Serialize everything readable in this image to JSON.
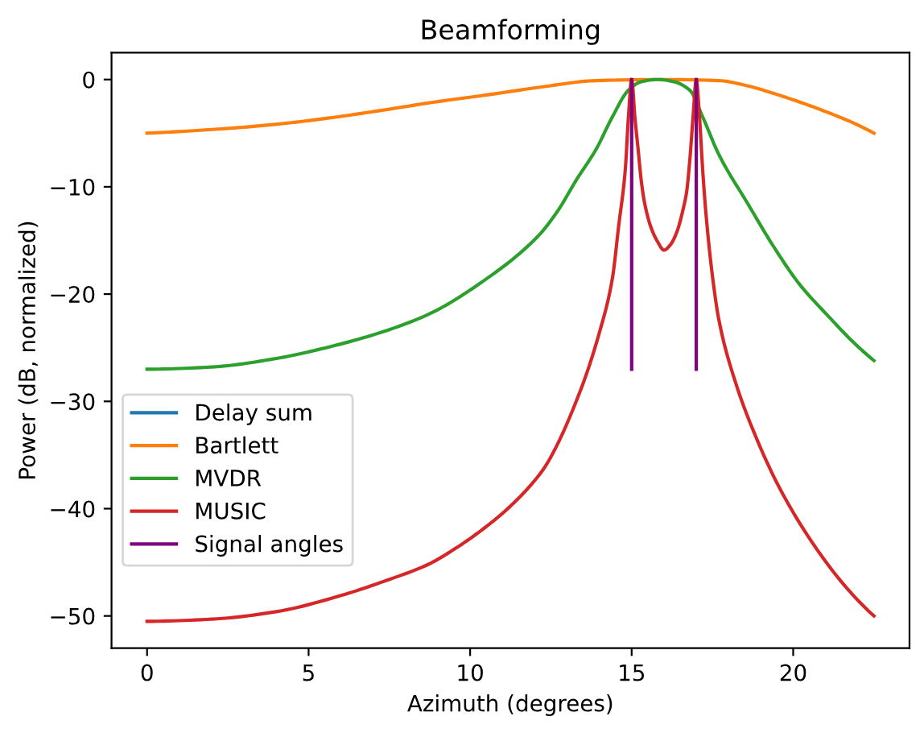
{
  "chart_data": {
    "type": "line",
    "title": "Beamforming",
    "xlabel": "Azimuth (degrees)",
    "ylabel": "Power (dB, normalized)",
    "xlim": [
      -1.1,
      23.6
    ],
    "ylim": [
      -53.0,
      2.5
    ],
    "xticks": [
      0,
      5,
      10,
      15,
      20
    ],
    "yticks": [
      0,
      {
        "value": -10,
        "label": "−10"
      },
      {
        "value": -20,
        "label": "−20"
      },
      {
        "value": -30,
        "label": "−30"
      },
      {
        "value": -40,
        "label": "−40"
      },
      {
        "value": -50,
        "label": "−50"
      }
    ],
    "grid": false,
    "legend": "bottom left",
    "series": [
      {
        "name": "Delay sum",
        "color": "#1f77b4",
        "values": [
          null
        ]
      },
      {
        "name": "Bartlett",
        "color": "#ff7f0e",
        "x": [
          0,
          2.3,
          3.9,
          5.6,
          7.2,
          8.9,
          10.6,
          12.2,
          13.9,
          16.0,
          17.7,
          18.6,
          19.4,
          20.2,
          21.1,
          21.9,
          22.5
        ],
        "values": [
          -5.0,
          -4.6,
          -4.2,
          -3.6,
          -2.9,
          -2.1,
          -1.4,
          -0.7,
          -0.1,
          0,
          -0.1,
          -0.6,
          -1.3,
          -2.1,
          -3.1,
          -4.1,
          -5.0
        ]
      },
      {
        "name": "MVDR",
        "color": "#2ca02c",
        "x": [
          0,
          2,
          4,
          5.4,
          7.1,
          8.7,
          10.4,
          12.1,
          12.7,
          13.3,
          13.9,
          14.4,
          14.9,
          15.3,
          15.8,
          16.3,
          16.8,
          17.2,
          17.7,
          18.6,
          19.4,
          20.2,
          21.1,
          21.9,
          22.5
        ],
        "values": [
          -27.0,
          -26.8,
          -26.0,
          -25.1,
          -23.7,
          -21.9,
          -18.8,
          -14.6,
          -12.3,
          -9.3,
          -6.5,
          -3.5,
          -1.0,
          -0.2,
          0,
          -0.2,
          -1.0,
          -3.5,
          -7.0,
          -11.6,
          -15.6,
          -19.1,
          -22.1,
          -24.6,
          -26.2
        ]
      },
      {
        "name": "MUSIC",
        "color": "#d62728",
        "x": [
          0,
          2,
          4,
          6,
          7.4,
          8.7,
          9.6,
          10.4,
          11.2,
          12.1,
          12.4,
          13.4,
          14.0,
          14.4,
          14.6,
          14.8,
          14.9,
          15.0,
          15.1,
          15.2,
          15.3,
          15.4,
          15.6,
          15.8,
          16.0,
          16.2,
          16.4,
          16.6,
          16.7,
          16.8,
          16.9,
          17.0,
          17.1,
          17.2,
          17.3,
          17.5,
          17.7,
          18.2,
          18.9,
          19.6,
          20.6,
          21.6,
          22.5
        ],
        "values": [
          -50.5,
          -50.3,
          -49.6,
          -48.1,
          -46.7,
          -45.2,
          -43.6,
          -41.9,
          -39.9,
          -37.0,
          -35.7,
          -29.1,
          -23.6,
          -18.6,
          -13.6,
          -8.5,
          -3.5,
          0,
          -3.5,
          -6.5,
          -9.5,
          -11.5,
          -13.8,
          -15.1,
          -15.9,
          -15.4,
          -14.2,
          -12.0,
          -10.5,
          -7.5,
          -3.5,
          0,
          -3.5,
          -8.5,
          -12.5,
          -18.3,
          -22.4,
          -28.1,
          -33.7,
          -38.2,
          -43.2,
          -47.2,
          -50.0
        ]
      },
      {
        "name": "Signal angles",
        "color": "#800080",
        "x": [
          15,
          15,
          16,
          17,
          17
        ],
        "values": [
          -27.0,
          0,
          null,
          -27.0,
          0
        ]
      }
    ]
  }
}
